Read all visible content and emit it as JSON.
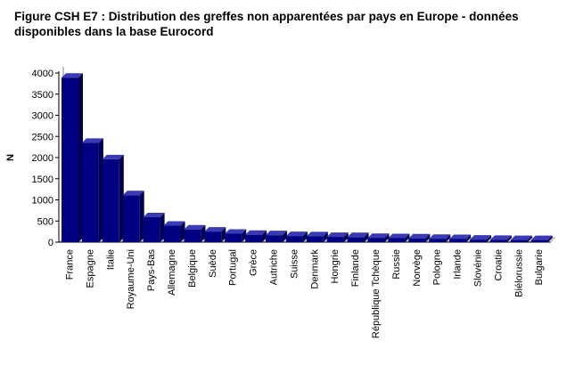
{
  "title": {
    "line1": "Figure CSH E7 : Distribution des greffes non apparentées par pays en Europe - données",
    "line2": "disponibles dans la base Eurocord"
  },
  "colors": {
    "bar_front": "#000080",
    "bar_top": "#3a3ab4",
    "bar_side": "#00004a",
    "axis": "#000000"
  },
  "chart_data": {
    "type": "bar",
    "title": "Figure CSH E7 : Distribution des greffes non apparentées par pays en Europe - données disponibles dans la base Eurocord",
    "xlabel": "",
    "ylabel": "N",
    "ylim": [
      0,
      4000
    ],
    "yticks": [
      0,
      500,
      1000,
      1500,
      2000,
      2500,
      3000,
      3500,
      4000
    ],
    "grid": false,
    "legend": "none",
    "categories": [
      "France",
      "Espagne",
      "Italie",
      "Royaume-Uni",
      "Pays-Bas",
      "Allemagne",
      "Belgique",
      "Suède",
      "Portugal",
      "Grèce",
      "Autriche",
      "Suisse",
      "Denmark",
      "Hongrie",
      "Finlande",
      "République Tchèque",
      "Russie",
      "Norvège",
      "Pologne",
      "Irlande",
      "Slovénie",
      "Croatie",
      "Biélorussie",
      "Bulgarie"
    ],
    "values": [
      3890,
      2350,
      1960,
      1110,
      590,
      390,
      300,
      250,
      200,
      175,
      165,
      145,
      140,
      125,
      120,
      100,
      95,
      90,
      80,
      75,
      60,
      55,
      50,
      50
    ]
  }
}
